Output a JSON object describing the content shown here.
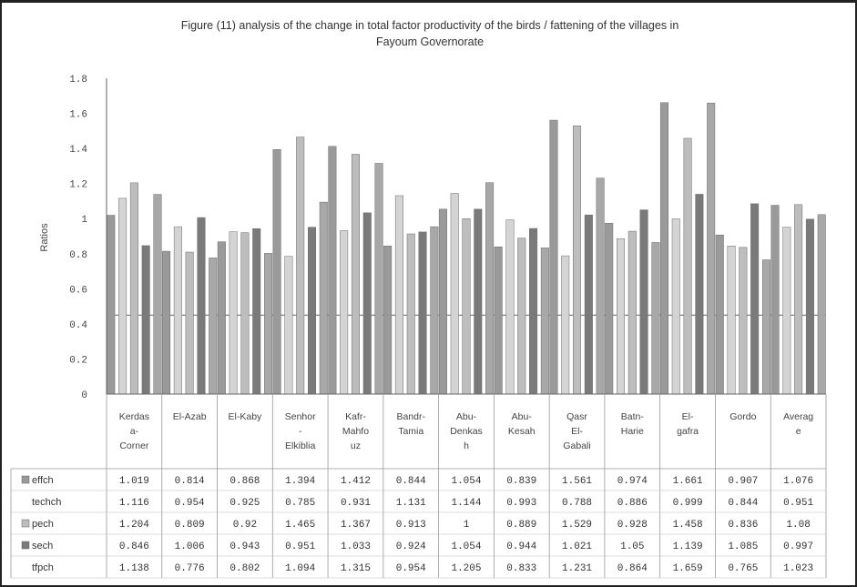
{
  "chart_data": {
    "type": "bar",
    "title_lines": [
      "Figure (11) analysis of the change in total factor productivity of the birds / fattening of the villages in",
      "Fayoum Governorate"
    ],
    "ylabel": "Ratios",
    "ylim": [
      0,
      1.8
    ],
    "yticks": [
      "0",
      "0.2",
      "0.4",
      "0.6",
      "0.8",
      "1",
      "1.2",
      "1.4",
      "1.6",
      "1.8"
    ],
    "grid": false,
    "legend": "data-table",
    "category_labels": [
      [
        "Kerdas",
        "a-",
        "Corner"
      ],
      [
        "El-Azab"
      ],
      [
        "El-Kaby"
      ],
      [
        "Senhor",
        "-",
        "Elkiblia"
      ],
      [
        "Kafr-",
        "Mahfo",
        "uz"
      ],
      [
        "Bandr-",
        "Tamia"
      ],
      [
        "Abu-",
        "Denkas",
        "h"
      ],
      [
        "Abu-",
        "Kesah"
      ],
      [
        "Qasr",
        "El-",
        "Gabali"
      ],
      [
        "Batn-",
        "Harie"
      ],
      [
        "El-",
        "gafra"
      ],
      [
        "Gordo"
      ],
      [
        "Averag",
        "e"
      ]
    ],
    "series": [
      {
        "name": "effch",
        "color": "#9a9a9a",
        "values": [
          1.019,
          0.814,
          0.868,
          1.394,
          1.412,
          0.844,
          1.054,
          0.839,
          1.561,
          0.974,
          1.661,
          0.907,
          1.076
        ],
        "labels": [
          "1.019",
          "0.814",
          "0.868",
          "1.394",
          "1.412",
          "0.844",
          "1.054",
          "0.839",
          "1.561",
          "0.974",
          "1.661",
          "0.907",
          "1.076"
        ]
      },
      {
        "name": "techch",
        "color": "#d4d4d4",
        "values": [
          1.116,
          0.954,
          0.925,
          0.785,
          0.931,
          1.131,
          1.144,
          0.993,
          0.788,
          0.886,
          0.999,
          0.844,
          0.951
        ],
        "labels": [
          "1.116",
          "0.954",
          "0.925",
          "0.785",
          "0.931",
          "1.131",
          "1.144",
          "0.993",
          "0.788",
          "0.886",
          "0.999",
          "0.844",
          "0.951"
        ]
      },
      {
        "name": "pech",
        "color": "#bdbdbd",
        "values": [
          1.204,
          0.809,
          0.92,
          1.465,
          1.367,
          0.913,
          1,
          0.889,
          1.529,
          0.928,
          1.458,
          0.836,
          1.08
        ],
        "labels": [
          "1.204",
          "0.809",
          "0.92",
          "1.465",
          "1.367",
          "0.913",
          "1",
          "0.889",
          "1.529",
          "0.928",
          "1.458",
          "0.836",
          "1.08"
        ]
      },
      {
        "name": "sech",
        "color": "#7a7a7a",
        "values": [
          0.846,
          1.006,
          0.943,
          0.951,
          1.033,
          0.924,
          1.054,
          0.944,
          1.021,
          1.05,
          1.139,
          1.085,
          0.997
        ],
        "labels": [
          "0.846",
          "1.006",
          "0.943",
          "0.951",
          "1.033",
          "0.924",
          "1.054",
          "0.944",
          "1.021",
          "1.05",
          "1.139",
          "1.085",
          "0.997"
        ]
      },
      {
        "name": "tfpch",
        "color": "#a8a8a8",
        "values": [
          1.138,
          0.776,
          0.802,
          1.094,
          1.315,
          0.954,
          1.205,
          0.833,
          1.231,
          0.864,
          1.659,
          0.765,
          1.023
        ],
        "labels": [
          "1.138",
          "0.776",
          "0.802",
          "1.094",
          "1.315",
          "0.954",
          "1.205",
          "0.833",
          "1.231",
          "0.864",
          "1.659",
          "0.765",
          "1.023"
        ]
      }
    ],
    "reference_line": 0.45
  }
}
